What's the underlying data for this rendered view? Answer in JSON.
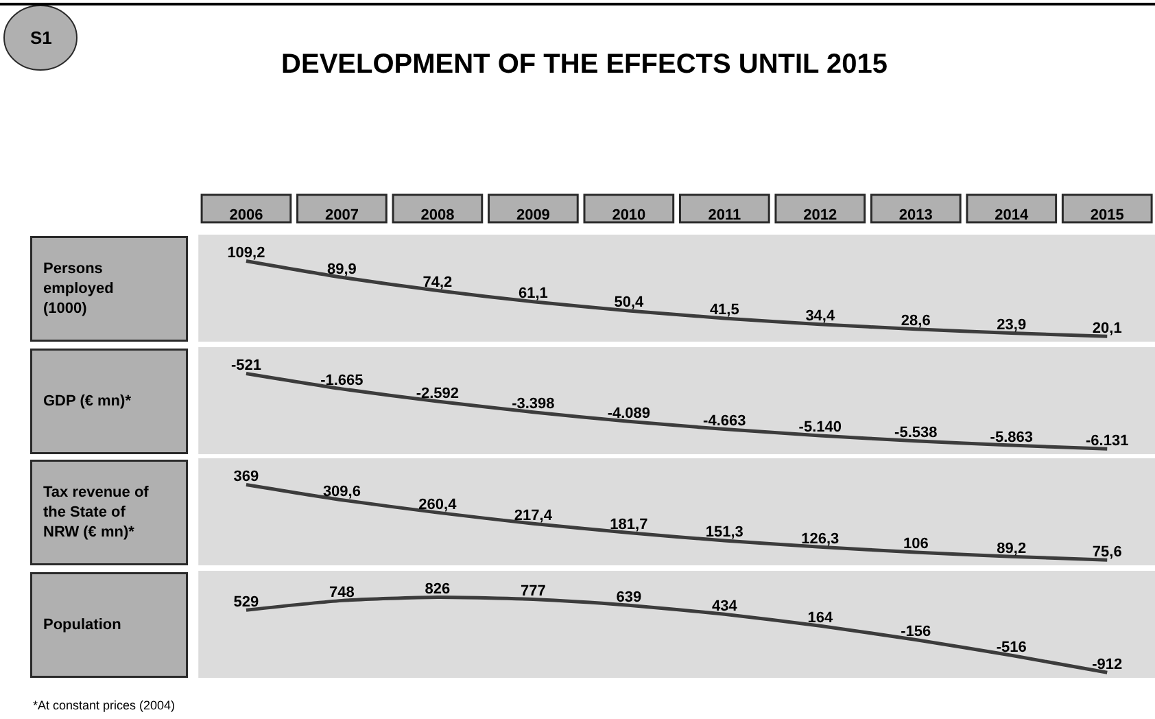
{
  "chart_data": [
    {
      "type": "line",
      "title": "DEVELOPMENT OF THE EFFECTS UNTIL 2015",
      "annotations": [
        "S1"
      ],
      "ylabel": "Persons employed (1000)",
      "categories": [
        "2006",
        "2007",
        "2008",
        "2009",
        "2010",
        "2011",
        "2012",
        "2013",
        "2014",
        "2015"
      ],
      "values": [
        109.2,
        89.9,
        74.2,
        61.1,
        50.4,
        41.5,
        34.4,
        28.6,
        23.9,
        20.1
      ],
      "value_labels": [
        "109,2",
        "89,9",
        "74,2",
        "61,1",
        "50,4",
        "41,5",
        "34,4",
        "28,6",
        "23,9",
        "20,1"
      ],
      "color": "#3c3c3c",
      "tick_labels": "x"
    },
    {
      "type": "line",
      "ylabel": "GDP (€ mn)*",
      "categories": [
        "2006",
        "2007",
        "2008",
        "2009",
        "2010",
        "2011",
        "2012",
        "2013",
        "2014",
        "2015"
      ],
      "values": [
        -521,
        -1665,
        -2592,
        -3398,
        -4089,
        -4663,
        -5140,
        -5538,
        -5863,
        -6131
      ],
      "value_labels": [
        "-521",
        "-1.665",
        "-2.592",
        "-3.398",
        "-4.089",
        "-4.663",
        "-5.140",
        "-5.538",
        "-5.863",
        "-6.131"
      ],
      "color": "#3c3c3c",
      "tick_labels": false
    },
    {
      "type": "line",
      "ylabel": "Tax revenue of the State of NRW (€ mn)*",
      "categories": [
        "2006",
        "2007",
        "2008",
        "2009",
        "2010",
        "2011",
        "2012",
        "2013",
        "2014",
        "2015"
      ],
      "values": [
        369,
        309.6,
        260.4,
        217.4,
        181.7,
        151.3,
        126.3,
        106,
        89.2,
        75.6
      ],
      "value_labels": [
        "369",
        "309,6",
        "260,4",
        "217,4",
        "181,7",
        "151,3",
        "126,3",
        "106",
        "89,2",
        "75,6"
      ],
      "color": "#3c3c3c",
      "tick_labels": false
    },
    {
      "type": "line",
      "ylabel": "Population",
      "annotations": [
        "*At constant prices (2004)"
      ],
      "categories": [
        "2006",
        "2007",
        "2008",
        "2009",
        "2010",
        "2011",
        "2012",
        "2013",
        "2014",
        "2015"
      ],
      "values": [
        529,
        748,
        826,
        777,
        639,
        434,
        164,
        -156,
        -516,
        -912
      ],
      "value_labels": [
        "529",
        "748",
        "826",
        "777",
        "639",
        "434",
        "164",
        "-156",
        "-516",
        "-912"
      ],
      "color": "#3c3c3c",
      "tick_labels": false
    }
  ]
}
